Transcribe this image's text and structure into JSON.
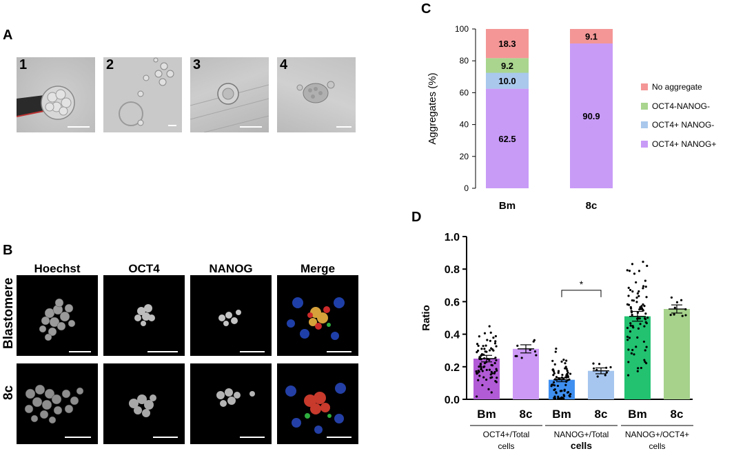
{
  "panels": {
    "A": {
      "letter": "A",
      "images": [
        {
          "num": "1"
        },
        {
          "num": "2"
        },
        {
          "num": "3"
        },
        {
          "num": "4"
        }
      ]
    },
    "B": {
      "letter": "B",
      "columns": [
        "Hoechst",
        "OCT4",
        "NANOG",
        "Merge"
      ],
      "rows": [
        "Blastomere",
        "8c"
      ]
    },
    "C": {
      "letter": "C"
    },
    "D": {
      "letter": "D"
    }
  },
  "chart_data": [
    {
      "panel": "C",
      "type": "bar",
      "stacked": true,
      "categories": [
        "Bm",
        "8c"
      ],
      "ylabel": "Aggregates (%)",
      "ylim": [
        0,
        100
      ],
      "yticks": [
        "0",
        "20",
        "40",
        "60",
        "80",
        "100"
      ],
      "legend_position": "right",
      "series": [
        {
          "name": "OCT4+ NANOG+",
          "values": [
            62.5,
            90.9
          ],
          "labels": [
            "62.5",
            "90.9"
          ],
          "color": "#c89bf7"
        },
        {
          "name": "OCT4+ NANOG-",
          "values": [
            10.0,
            0
          ],
          "labels": [
            "10.0",
            ""
          ],
          "color": "#a9c8ec"
        },
        {
          "name": "OCT4-NANOG-",
          "values": [
            9.2,
            0
          ],
          "labels": [
            "9.2",
            ""
          ],
          "color": "#a9d58e"
        },
        {
          "name": "No aggregate",
          "values": [
            18.3,
            9.1
          ],
          "labels": [
            "18.3",
            "9.1"
          ],
          "color": "#f49696"
        }
      ],
      "legend_order": [
        "No aggregate",
        "OCT4-NANOG-",
        "OCT4+ NANOG-",
        "OCT4+ NANOG+"
      ]
    },
    {
      "panel": "D",
      "type": "bar",
      "ylabel": "Ratio",
      "ylim": [
        0,
        1.0
      ],
      "yticks": [
        "0.0",
        "0.2",
        "0.4",
        "0.6",
        "0.8",
        "1.0"
      ],
      "categories": [
        "Bm",
        "8c",
        "Bm",
        "8c",
        "Bm",
        "8c"
      ],
      "groups": [
        "OCT4+/Total cells",
        "NANOG+/Total cells",
        "NANOG+/OCT4+ cells"
      ],
      "group_lines": [
        [
          "OCT4+/Total",
          "cells"
        ],
        [
          "NANOG+/Total",
          "cells"
        ],
        [
          "NANOG+/OCT4+",
          "cells"
        ]
      ],
      "means": [
        0.25,
        0.31,
        0.12,
        0.175,
        0.51,
        0.555
      ],
      "sem": [
        0.02,
        0.025,
        0.012,
        0.018,
        0.03,
        0.025
      ],
      "colors": [
        "#b25bd6",
        "#cc99f5",
        "#3f8ff0",
        "#a6c6ef",
        "#22c271",
        "#a6d28c"
      ],
      "significance": {
        "label": "*",
        "between": [
          2,
          3
        ],
        "y": 0.67
      },
      "point_spread": [
        0.12,
        0.05,
        0.1,
        0.04,
        0.2,
        0.06
      ],
      "point_counts": [
        80,
        9,
        75,
        9,
        80,
        9
      ]
    }
  ]
}
